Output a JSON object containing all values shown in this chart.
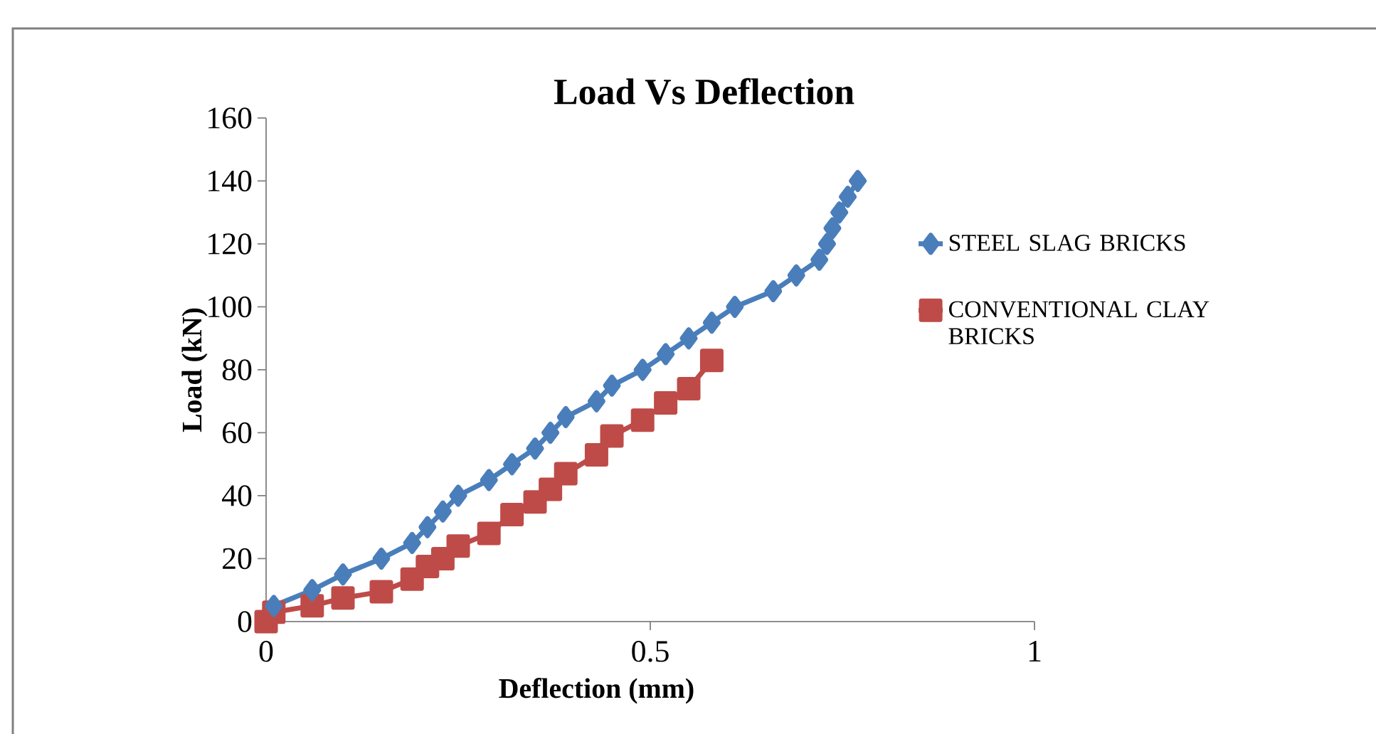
{
  "chart_data": {
    "type": "line",
    "title": "Load Vs Deflection",
    "xlabel": "Deflection  (mm)",
    "ylabel": "Load (kN)",
    "xlim": [
      0,
      1
    ],
    "xticks": [
      0,
      0.5,
      1
    ],
    "ylim": [
      0,
      160
    ],
    "yticks": [
      0,
      20,
      40,
      60,
      80,
      100,
      120,
      140,
      160
    ],
    "grid": false,
    "legend": "right",
    "series": [
      {
        "name": "STEEL SLAG BRICKS",
        "color": "#4a7ebb",
        "marker": "diamond",
        "x": [
          0.01,
          0.06,
          0.1,
          0.15,
          0.19,
          0.21,
          0.23,
          0.25,
          0.29,
          0.32,
          0.35,
          0.37,
          0.39,
          0.43,
          0.45,
          0.49,
          0.52,
          0.55,
          0.58,
          0.61,
          0.66,
          0.69,
          0.72,
          0.73,
          0.737,
          0.746,
          0.757,
          0.77
        ],
        "values": [
          5,
          10,
          15,
          20,
          25,
          30,
          35,
          40,
          45,
          50,
          55,
          60,
          65,
          70,
          75,
          80,
          85,
          90,
          95,
          100,
          105,
          110,
          115,
          120,
          125,
          130,
          135,
          140
        ]
      },
      {
        "name": "CONVENTIONAL CLAY BRICKS",
        "color": "#be4b48",
        "marker": "square",
        "x": [
          0,
          0.01,
          0.06,
          0.1,
          0.15,
          0.19,
          0.21,
          0.23,
          0.25,
          0.29,
          0.32,
          0.35,
          0.37,
          0.39,
          0.43,
          0.45,
          0.49,
          0.52,
          0.55,
          0.58
        ],
        "values": [
          0,
          3,
          5,
          7.5,
          9.5,
          13.5,
          17.5,
          20,
          24,
          28,
          34,
          38,
          42,
          47,
          53,
          59,
          64,
          69.5,
          74,
          83
        ]
      }
    ]
  }
}
